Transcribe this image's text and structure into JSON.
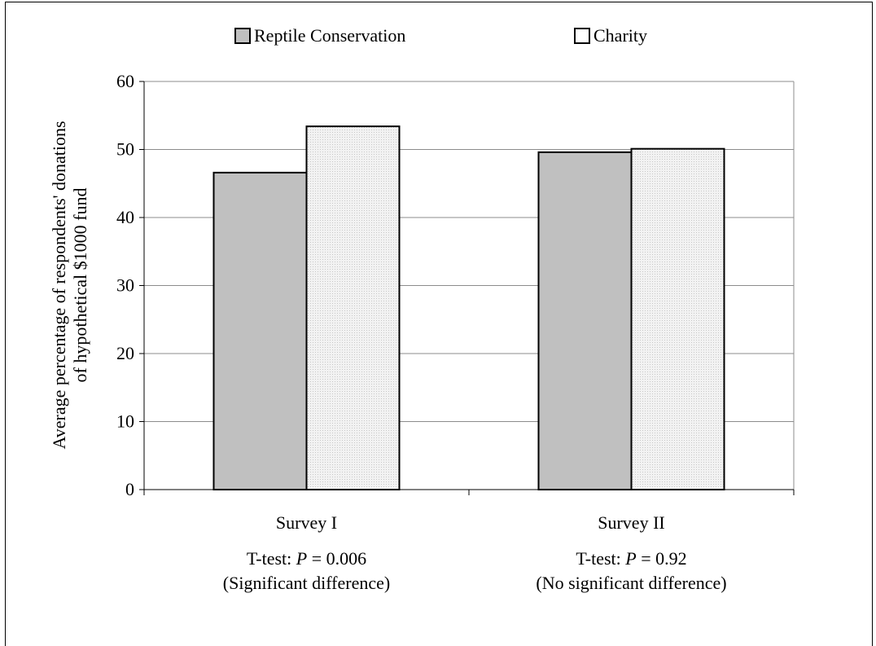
{
  "chart_data": {
    "type": "bar",
    "ylabel_line1": "Average percentage of respondents' donations",
    "ylabel_line2": "of hypothetical $1000 fund",
    "ylim": [
      0,
      60
    ],
    "yticks": [
      0,
      10,
      20,
      30,
      40,
      50,
      60
    ],
    "grid": true,
    "legend_position": "top",
    "categories": [
      "Survey I",
      "Survey II"
    ],
    "series": [
      {
        "name": "Reptile Conservation",
        "values": [
          46.6,
          49.6
        ],
        "color": "#c0c0c0"
      },
      {
        "name": "Charity",
        "values": [
          53.4,
          50.1
        ],
        "color": "#eeeeee"
      }
    ],
    "annotations": [
      {
        "prefix": "T-test: ",
        "p": "P",
        "suffix": " = 0.006",
        "note": "(Significant difference)"
      },
      {
        "prefix": "T-test: ",
        "p": "P",
        "suffix": " = 0.92",
        "note": "(No significant difference)"
      }
    ]
  }
}
